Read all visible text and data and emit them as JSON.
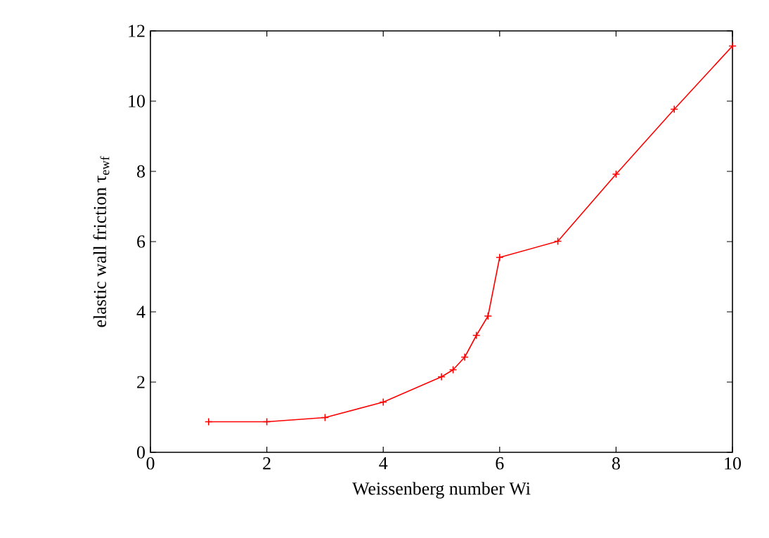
{
  "chart_data": {
    "type": "line",
    "xlabel": "Weissenberg number Wi",
    "ylabel": "elastic wall friction τ$_{ewf}$",
    "x": [
      1,
      2,
      3,
      4,
      5,
      5.2,
      5.4,
      5.6,
      5.8,
      6,
      7,
      8,
      9,
      10
    ],
    "series": [
      {
        "color": "#ff0000",
        "values": [
          0.87,
          0.87,
          0.99,
          1.43,
          2.15,
          2.35,
          2.71,
          3.33,
          3.88,
          5.55,
          6.01,
          7.92,
          9.77,
          11.57
        ]
      }
    ],
    "xlim": [
      0,
      10
    ],
    "ylim": [
      0,
      12
    ],
    "xticks": [
      0,
      2,
      4,
      6,
      8,
      10
    ],
    "yticks": [
      0,
      2,
      4,
      6,
      8,
      10,
      12
    ],
    "marker": "cross",
    "line_style": "solid"
  }
}
